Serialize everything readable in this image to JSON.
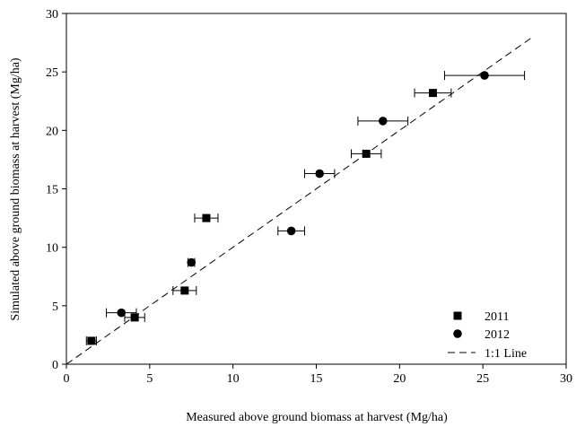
{
  "chart_data": {
    "type": "scatter",
    "xlabel": "Measured above ground biomass at harvest (Mg/ha)",
    "ylabel": "Simulated above ground biomass at harvest (Mg/ha)",
    "xlim": [
      0,
      30
    ],
    "ylim": [
      0,
      30
    ],
    "xticks": [
      0,
      5,
      10,
      15,
      20,
      25,
      30
    ],
    "yticks": [
      0,
      5,
      10,
      15,
      20,
      25,
      30
    ],
    "grid": false,
    "legend_position": "bottom-right",
    "series": [
      {
        "name": "2011",
        "marker": "square",
        "color": "#000000",
        "points": [
          {
            "x": 1.5,
            "y": 2.0,
            "xerr": 0.3
          },
          {
            "x": 4.1,
            "y": 4.0,
            "xerr": 0.6
          },
          {
            "x": 7.1,
            "y": 6.3,
            "xerr": 0.7
          },
          {
            "x": 8.4,
            "y": 12.5,
            "xerr": 0.7
          },
          {
            "x": 18.0,
            "y": 18.0,
            "xerr": 0.9
          },
          {
            "x": 22.0,
            "y": 23.2,
            "xerr": 1.1
          }
        ]
      },
      {
        "name": "2012",
        "marker": "circle",
        "color": "#000000",
        "points": [
          {
            "x": 3.3,
            "y": 4.4,
            "xerr": 0.9
          },
          {
            "x": 7.5,
            "y": 8.7,
            "xerr": 0.2
          },
          {
            "x": 13.5,
            "y": 11.4,
            "xerr": 0.8
          },
          {
            "x": 15.2,
            "y": 16.3,
            "xerr": 0.9
          },
          {
            "x": 19.0,
            "y": 20.8,
            "xerr": 1.5
          },
          {
            "x": 25.1,
            "y": 24.7,
            "xerr": 2.4
          }
        ]
      },
      {
        "name": "1:1 Line",
        "type": "line",
        "style": "dashed",
        "color": "#000000",
        "x": [
          0,
          28
        ],
        "y": [
          0,
          28
        ]
      }
    ]
  }
}
